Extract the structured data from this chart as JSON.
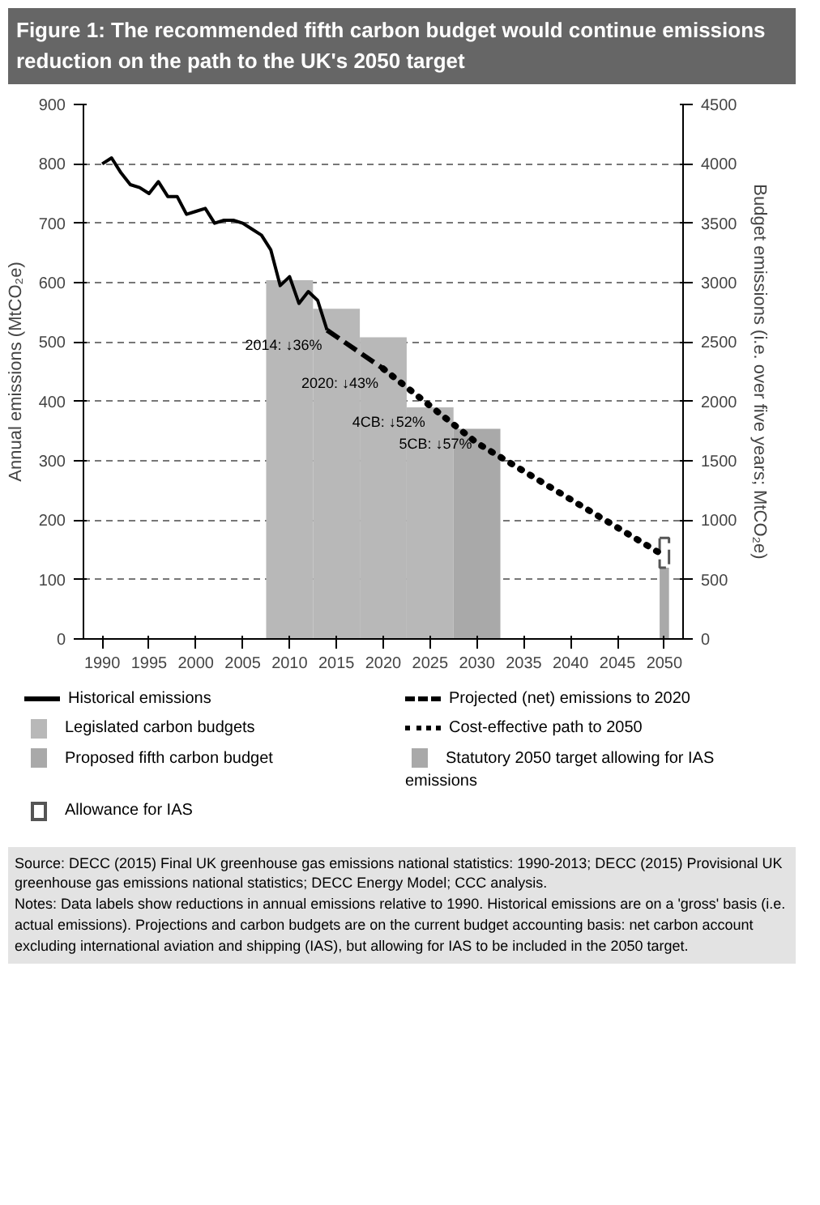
{
  "chart_data": {
    "type": "line",
    "title": "Figure 1: The recommended fifth carbon budget would continue emissions reduction on the path to the UK's 2050 target",
    "ylabel": "Annual emissions (MtCO₂e)",
    "y2label": "Budget emissions (i.e. over five years; MtCO₂e)",
    "xlim": [
      1988,
      2052
    ],
    "xticks": [
      1990,
      1995,
      2000,
      2005,
      2010,
      2015,
      2020,
      2025,
      2030,
      2035,
      2040,
      2045,
      2050
    ],
    "ylim": [
      0,
      900
    ],
    "yticks": [
      0,
      100,
      200,
      300,
      400,
      500,
      600,
      700,
      800,
      900
    ],
    "y2lim": [
      0,
      4500
    ],
    "y2ticks": [
      0,
      500,
      1000,
      1500,
      2000,
      2500,
      3000,
      3500,
      4000,
      4500
    ],
    "grid": "y",
    "legend": "bottom",
    "series": [
      {
        "name": "Historical emissions",
        "line_style": "solid",
        "color": "#000000",
        "x": [
          1990,
          1991,
          1992,
          1993,
          1994,
          1995,
          1996,
          1997,
          1998,
          1999,
          2000,
          2001,
          2002,
          2003,
          2004,
          2005,
          2006,
          2007,
          2008,
          2009,
          2010,
          2011,
          2012,
          2013,
          2014
        ],
        "values": [
          800,
          810,
          785,
          765,
          760,
          750,
          770,
          745,
          745,
          715,
          720,
          725,
          700,
          705,
          705,
          700,
          690,
          680,
          655,
          595,
          610,
          565,
          585,
          570,
          520
        ]
      },
      {
        "name": "Projected (net) emissions to 2020",
        "line_style": "dashed",
        "color": "#000000",
        "x": [
          2014,
          2020
        ],
        "values": [
          520,
          455
        ]
      },
      {
        "name": "Legislated carbon budgets",
        "type": "bar",
        "axis": "y2",
        "color": "#b8b8b8",
        "x": [
          2010,
          2015,
          2020,
          2025
        ],
        "values": [
          3020,
          2780,
          2540,
          1950
        ]
      },
      {
        "name": "Cost-effective path to 2050",
        "line_style": "dotted",
        "color": "#000000",
        "x": [
          2020,
          2030,
          2040,
          2050
        ],
        "values": [
          455,
          330,
          235,
          140
        ]
      },
      {
        "name": "Proposed fifth carbon budget",
        "type": "bar",
        "axis": "y2",
        "color": "#a9a9a9",
        "x": [
          2030
        ],
        "values": [
          1770
        ]
      },
      {
        "name": "Statutory 2050 target allowing for IAS emissions",
        "type": "bar",
        "color": "#a9a9a9",
        "x": [
          2050
        ],
        "values": [
          120
        ]
      },
      {
        "name": "Allowance for IAS",
        "type": "bar",
        "color": "#ffffff",
        "line_style": "dashed",
        "x": [
          2050
        ],
        "values": [
          50
        ],
        "base": [
          120
        ]
      }
    ],
    "annotations": [
      {
        "text": "2014: ↓36%",
        "x": 2014,
        "y": 520
      },
      {
        "text": "2020: ↓43%",
        "x": 2020,
        "y": 455
      },
      {
        "text": "4CB: ↓52%",
        "x": 2025,
        "y": 390
      },
      {
        "text": "5CB: ↓57%",
        "x": 2030,
        "y": 353
      },
      "Source: DECC (2015) Final UK greenhouse gas emissions national statistics: 1990-2013; DECC (2015) Provisional UK greenhouse gas emissions national statistics; DECC Energy Model; CCC analysis.",
      "Notes: Data labels show reductions in annual emissions relative to 1990. Historical emissions are on a 'gross' basis (i.e. actual emissions). Projections and carbon budgets are on the current budget accounting basis: net carbon account excluding international aviation and shipping (IAS), but allowing for IAS to be included in the 2050 target."
    ]
  }
}
